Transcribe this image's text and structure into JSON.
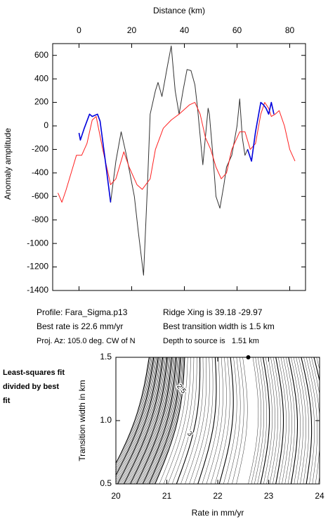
{
  "chart_data": [
    {
      "type": "line",
      "xlabel": "Distance (km)",
      "ylabel": "Anomaly amplitude",
      "xlim": [
        -10,
        86
      ],
      "xticks": [
        0,
        20,
        40,
        60,
        80
      ],
      "ylim": [
        -1400,
        700
      ],
      "yticks": [
        -1400,
        -1200,
        -1000,
        -800,
        -600,
        -400,
        -200,
        0,
        200,
        400,
        600
      ],
      "series": [
        {
          "color": "#333333",
          "x": [
            0,
            0.5,
            2,
            4,
            5,
            7,
            8,
            10,
            12,
            14,
            16,
            18,
            21,
            22.5,
            24.5,
            26,
            27,
            29,
            30,
            31.5,
            33.5,
            35,
            36.5,
            38,
            39.5,
            41,
            42.5,
            44,
            45,
            47,
            49,
            49.5,
            51,
            52,
            53.5,
            55,
            56,
            57,
            58,
            60,
            61,
            62,
            63,
            64,
            65.5,
            67,
            69,
            70,
            71,
            72,
            73,
            74
          ],
          "values": [
            -60,
            -120,
            -20,
            100,
            80,
            100,
            40,
            -300,
            -650,
            -300,
            -50,
            -250,
            -600,
            -900,
            -1270,
            -500,
            100,
            300,
            370,
            250,
            500,
            680,
            300,
            100,
            300,
            480,
            470,
            350,
            150,
            -330,
            150,
            100,
            -300,
            -600,
            -700,
            -500,
            -350,
            -300,
            -250,
            0,
            230,
            -100,
            -250,
            -200,
            -300,
            -50,
            200,
            180,
            150,
            100,
            200,
            100
          ]
        },
        {
          "color": "#ff2020",
          "x": [
            -8,
            -6.5,
            -5,
            -3,
            -1,
            1,
            3,
            5,
            6.5,
            9,
            12,
            14,
            17,
            19,
            22,
            24,
            27,
            29,
            32,
            35,
            38,
            42,
            44,
            46,
            48,
            50,
            52,
            54,
            56,
            58,
            61,
            63,
            65,
            67,
            69,
            70.5,
            72,
            73,
            74.5,
            76,
            78,
            80,
            82
          ],
          "values": [
            -570,
            -650,
            -550,
            -400,
            -250,
            -250,
            -150,
            50,
            80,
            -200,
            -500,
            -450,
            -220,
            -350,
            -500,
            -540,
            -450,
            -200,
            -20,
            50,
            100,
            180,
            200,
            100,
            -100,
            -200,
            -350,
            -450,
            -400,
            -200,
            -50,
            -50,
            -200,
            -150,
            100,
            200,
            150,
            80,
            100,
            130,
            0,
            -200,
            -300
          ]
        },
        {
          "color": "#0000dd",
          "x": [
            0,
            0.5,
            2,
            4,
            5,
            7,
            8,
            10,
            12,
            38,
            64,
            65.5,
            67,
            69,
            70,
            71,
            72,
            73,
            74
          ],
          "values": [
            -60,
            -120,
            -20,
            100,
            80,
            100,
            40,
            -300,
            -650,
            null,
            -200,
            -300,
            -50,
            200,
            180,
            150,
            100,
            200,
            100
          ]
        }
      ],
      "annotations": [
        "Profile: Fara_Sigma.p13",
        "Ridge Xing is 39.18 -29.97",
        "Best rate is 22.6 mm/yr",
        "Best transition width is 1.5 km",
        "Proj. Az: 105.0 deg. CW of N",
        "Depth to source is   1.51 km"
      ]
    },
    {
      "type": "contour",
      "title": "Least-squares fit divided by best fit",
      "xlabel": "Rate in mm/yr",
      "ylabel": "Transition width in km",
      "xlim": [
        20,
        24
      ],
      "xticks": [
        20,
        21,
        22,
        23,
        24
      ],
      "ylim": [
        0.5,
        1.5
      ],
      "yticks": [
        0.5,
        {
          "value": 1,
          "label": "1.0"
        },
        1.5
      ],
      "contour_labels": [
        {
          "value": 2.5,
          "label": "2.5"
        },
        {
          "value": 3,
          "label": "3"
        }
      ],
      "best_point": {
        "x": 22.6,
        "y": 1.5
      }
    }
  ]
}
